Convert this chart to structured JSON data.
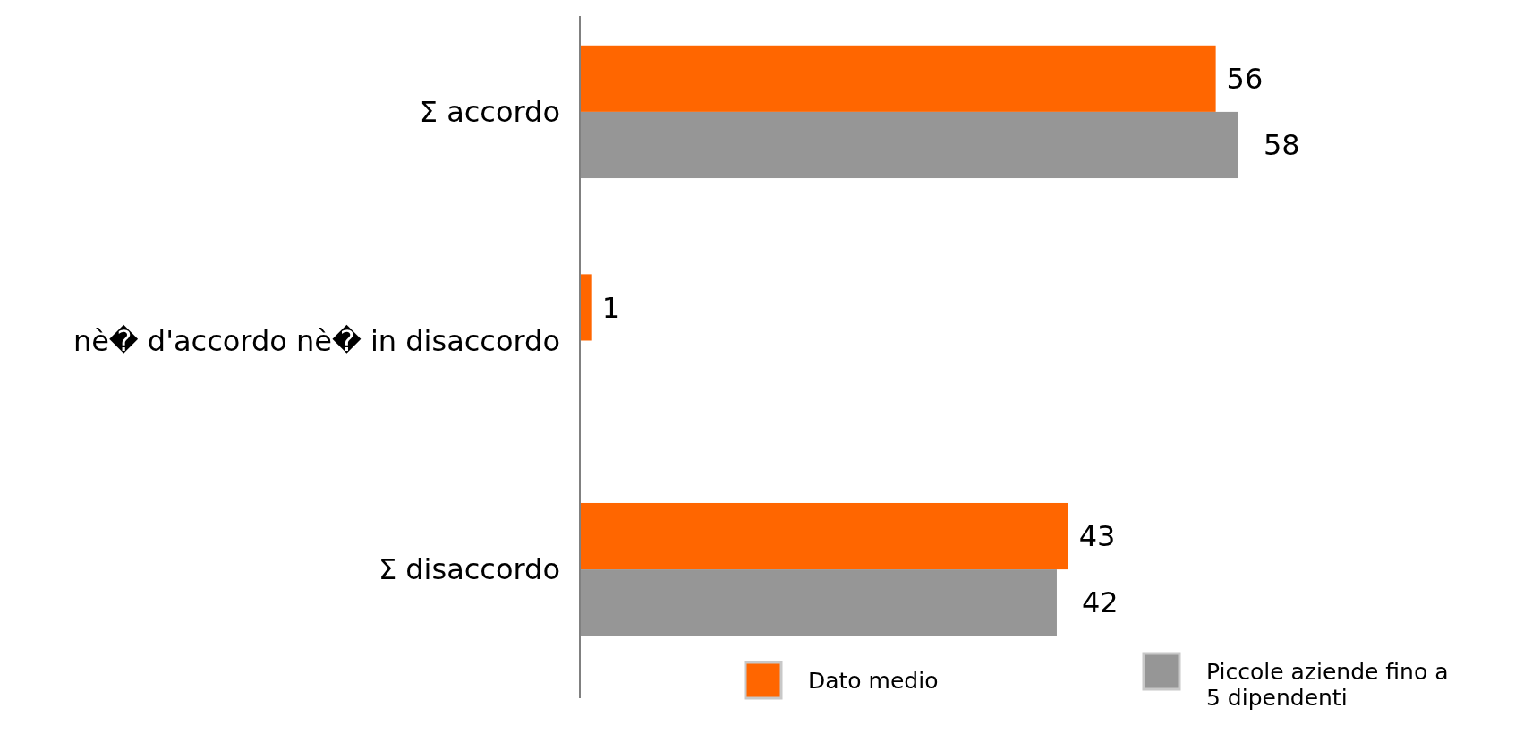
{
  "chart_data": {
    "type": "bar",
    "orientation": "horizontal",
    "categories": [
      "Σ accordo",
      "nè� d'accordo nè� in disaccordo",
      "Σ disaccordo"
    ],
    "series": [
      {
        "name": "Dato medio",
        "color": "#ff6600",
        "values": [
          56,
          1,
          43
        ]
      },
      {
        "name": "Piccole aziende fino a 5 dipendenti",
        "color": "#969696",
        "values": [
          58,
          null,
          42
        ]
      }
    ],
    "data_labels": true,
    "legend": "bottom"
  }
}
